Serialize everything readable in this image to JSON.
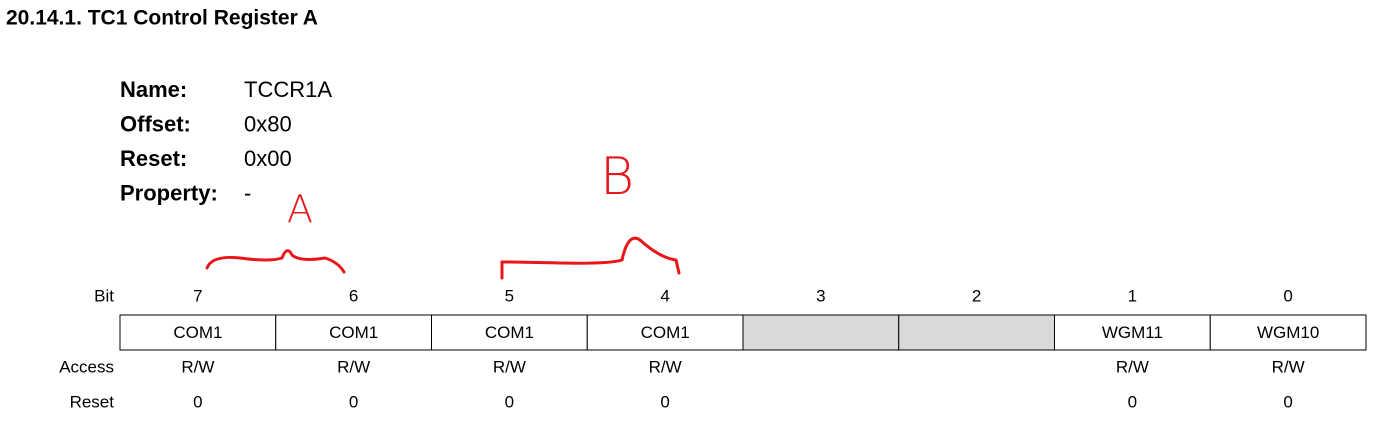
{
  "header": {
    "title": "20.14.1.  TC1 Control Register A"
  },
  "fields": [
    {
      "label": "Name:",
      "value": "TCCR1A"
    },
    {
      "label": "Offset:",
      "value": "0x80"
    },
    {
      "label": "Reset:",
      "value": "0x00"
    },
    {
      "label": "Property:",
      "value": "-"
    }
  ],
  "annotations": [
    "A",
    "B"
  ],
  "register": {
    "bit_label": "Bit",
    "access_label": "Access",
    "reset_label": "Reset",
    "bits": [
      7,
      6,
      5,
      4,
      3,
      2,
      1,
      0
    ],
    "names": [
      "COM1",
      "COM1",
      "COM1",
      "COM1",
      null,
      null,
      "WGM11",
      "WGM10"
    ],
    "access": [
      "R/W",
      "R/W",
      "R/W",
      "R/W",
      null,
      null,
      "R/W",
      "R/W"
    ],
    "reset": [
      0,
      0,
      0,
      0,
      null,
      null,
      0,
      0
    ]
  }
}
